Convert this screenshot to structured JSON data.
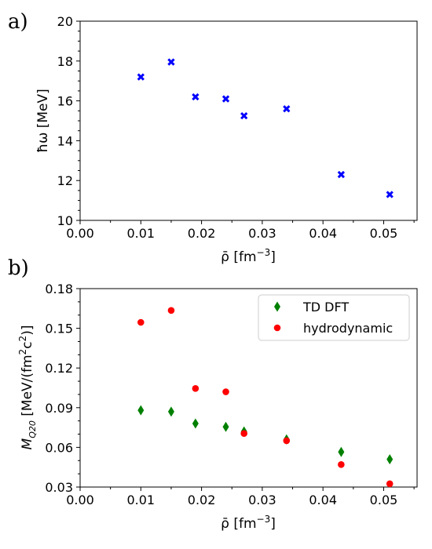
{
  "chart_data": [
    {
      "type": "scatter",
      "panel_label": "a)",
      "xlabel_main": "ρ̄ [fm",
      "xlabel_sup": "−3",
      "xlabel_end": "]",
      "ylabel": "ħω [MeV]",
      "xlim": [
        0,
        0.0555
      ],
      "ylim": [
        10,
        20
      ],
      "xticks": [
        "0.00",
        "0.01",
        "0.02",
        "0.03",
        "0.04",
        "0.05"
      ],
      "xtick_values": [
        0,
        0.01,
        0.02,
        0.03,
        0.04,
        0.05
      ],
      "yticks": [
        "10",
        "12",
        "14",
        "16",
        "18",
        "20"
      ],
      "ytick_values": [
        10,
        12,
        14,
        16,
        18,
        20
      ],
      "series": [
        {
          "marker": "x",
          "color": "#0000ff",
          "x": [
            0.01,
            0.015,
            0.019,
            0.024,
            0.027,
            0.034,
            0.043,
            0.051
          ],
          "y": [
            17.2,
            17.95,
            16.2,
            16.1,
            15.25,
            15.6,
            12.3,
            11.3
          ]
        }
      ]
    },
    {
      "type": "scatter",
      "panel_label": "b)",
      "xlabel_main": "ρ̄ [fm",
      "xlabel_sup": "−3",
      "xlabel_end": "]",
      "ylabel_main": "M",
      "ylabel_sub": "Q20",
      "ylabel_rest": " [MeV/(fm",
      "ylabel_sup1": "2",
      "ylabel_mid": "c",
      "ylabel_sup2": "2",
      "ylabel_end": ")]",
      "xlim": [
        0,
        0.0555
      ],
      "ylim": [
        0.03,
        0.18
      ],
      "xticks": [
        "0.00",
        "0.01",
        "0.02",
        "0.03",
        "0.04",
        "0.05"
      ],
      "xtick_values": [
        0,
        0.01,
        0.02,
        0.03,
        0.04,
        0.05
      ],
      "yticks": [
        "0.03",
        "0.06",
        "0.09",
        "0.12",
        "0.15",
        "0.18"
      ],
      "ytick_values": [
        0.03,
        0.06,
        0.09,
        0.12,
        0.15,
        0.18
      ],
      "legend_position": "top-right",
      "series": [
        {
          "name": "TD DFT",
          "marker": "diamond",
          "color": "#008000",
          "x": [
            0.01,
            0.015,
            0.019,
            0.024,
            0.027,
            0.034,
            0.043,
            0.051
          ],
          "y": [
            0.088,
            0.087,
            0.078,
            0.0755,
            0.072,
            0.066,
            0.0565,
            0.051
          ]
        },
        {
          "name": "hydrodynamic",
          "marker": "circle",
          "color": "#ff0000",
          "x": [
            0.01,
            0.015,
            0.019,
            0.024,
            0.027,
            0.034,
            0.043,
            0.051
          ],
          "y": [
            0.1545,
            0.1635,
            0.1045,
            0.102,
            0.0705,
            0.065,
            0.047,
            0.0325
          ]
        }
      ]
    }
  ]
}
